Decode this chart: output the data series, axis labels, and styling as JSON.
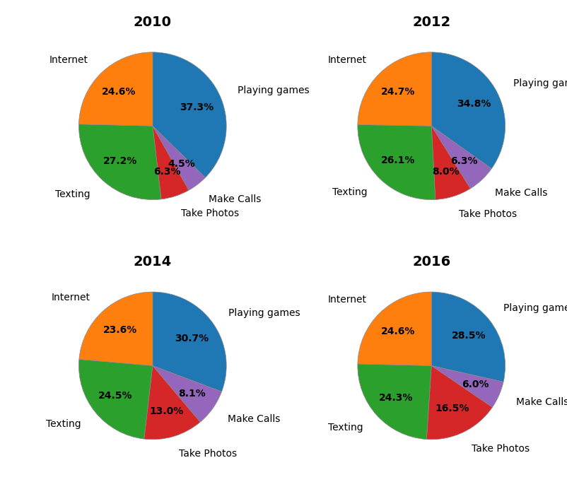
{
  "charts": [
    {
      "title": "2010",
      "labels": [
        "Playing games",
        "Make Calls",
        "Take Photos",
        "Texting",
        "Internet"
      ],
      "values": [
        37.3,
        4.5,
        6.3,
        27.2,
        24.6
      ],
      "colors": [
        "#1f77b4",
        "#9467bd",
        "#d62728",
        "#2ca02c",
        "#ff7f0e"
      ]
    },
    {
      "title": "2012",
      "labels": [
        "Playing games",
        "Make Calls",
        "Take Photos",
        "Texting",
        "Internet"
      ],
      "values": [
        34.8,
        6.3,
        8.0,
        26.1,
        24.7
      ],
      "colors": [
        "#1f77b4",
        "#9467bd",
        "#d62728",
        "#2ca02c",
        "#ff7f0e"
      ]
    },
    {
      "title": "2014",
      "labels": [
        "Playing games",
        "Make Calls",
        "Take Photos",
        "Texting",
        "Internet"
      ],
      "values": [
        30.7,
        8.1,
        13.0,
        24.5,
        23.6
      ],
      "colors": [
        "#1f77b4",
        "#9467bd",
        "#d62728",
        "#2ca02c",
        "#ff7f0e"
      ]
    },
    {
      "title": "2016",
      "labels": [
        "Playing games",
        "Make Calls",
        "Take Photos",
        "Texting",
        "Internet"
      ],
      "values": [
        28.5,
        6.0,
        16.5,
        24.3,
        24.6
      ],
      "colors": [
        "#1f77b4",
        "#9467bd",
        "#d62728",
        "#2ca02c",
        "#ff7f0e"
      ]
    }
  ],
  "title_fontsize": 14,
  "autopct_fontsize": 10,
  "label_fontsize": 10,
  "label_distance": 1.25,
  "pct_distance": 0.65,
  "figsize": [
    8.02,
    6.82
  ],
  "dpi": 100
}
